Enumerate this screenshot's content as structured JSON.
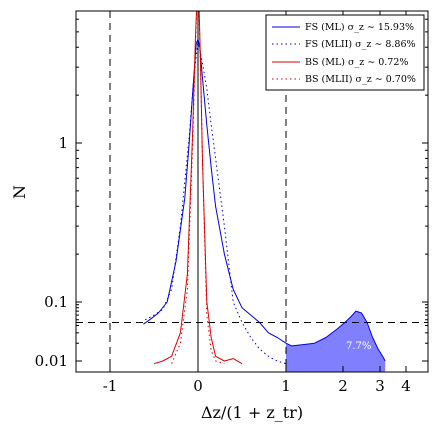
{
  "chart_data": {
    "type": "line",
    "title": "",
    "xlabel": "Δz/(1 + z_tr)",
    "ylabel": "N",
    "yscale": "log",
    "xscale": "symlog (linear between -1 and 1, log-like beyond)",
    "ylim": [
      0.008,
      9.0
    ],
    "xlim": [
      -1.7,
      4.8
    ],
    "x_ticks": [
      {
        "value": -1,
        "label": "-1"
      },
      {
        "value": 0,
        "label": "0"
      },
      {
        "value": 1,
        "label": "1"
      },
      {
        "value": 2,
        "label": "2"
      },
      {
        "value": 3,
        "label": "3"
      },
      {
        "value": 4,
        "label": "4"
      }
    ],
    "y_ticks": [
      {
        "value": 0.01,
        "label": "0.01"
      },
      {
        "value": 0.1,
        "label": "0.1"
      },
      {
        "value": 1,
        "label": "1"
      }
    ],
    "grid": false,
    "legend_position": "top-right",
    "reference_lines": {
      "vertical_dashed": [
        -1,
        1
      ],
      "vertical_solid": [
        0
      ],
      "horizontal_dashed": [
        0.045
      ]
    },
    "fill_annotation": {
      "label": "7.7%",
      "color": "#8080ff",
      "x_from": 1,
      "x_to": 3.2
    },
    "series": [
      {
        "name": "FS (ML) σ_z ∼ 15.93%",
        "color": "#0000dd",
        "style": "solid",
        "x": [
          -0.62,
          -0.55,
          -0.45,
          -0.35,
          -0.25,
          -0.15,
          -0.1,
          -0.05,
          -0.02,
          0.0,
          0.02,
          0.05,
          0.1,
          0.15,
          0.2,
          0.3,
          0.4,
          0.5,
          0.6,
          0.7,
          0.8,
          0.9,
          1.0,
          1.1,
          1.3,
          1.5,
          1.7,
          1.9,
          2.05,
          2.2,
          2.35,
          2.5,
          2.65,
          2.8,
          2.95,
          3.1,
          3.2
        ],
        "y": [
          0.042,
          0.05,
          0.065,
          0.1,
          0.18,
          0.45,
          1.0,
          2.5,
          4.2,
          4.5,
          4.0,
          2.6,
          1.3,
          0.7,
          0.4,
          0.2,
          0.12,
          0.08,
          0.06,
          0.045,
          0.03,
          0.025,
          0.02,
          0.018,
          0.019,
          0.02,
          0.025,
          0.035,
          0.045,
          0.055,
          0.07,
          0.065,
          0.045,
          0.025,
          0.016,
          0.012,
          0.01
        ]
      },
      {
        "name": "FS (MLII) σ_z ∼ 8.86%",
        "color": "#0000dd",
        "style": "dotted",
        "x": [
          -0.6,
          -0.5,
          -0.4,
          -0.3,
          -0.2,
          -0.1,
          -0.05,
          0.0,
          0.05,
          0.1,
          0.15,
          0.2,
          0.3,
          0.4,
          0.5,
          0.6,
          0.7,
          0.8,
          0.9,
          1.0
        ],
        "y": [
          0.05,
          0.06,
          0.075,
          0.12,
          0.3,
          1.1,
          2.5,
          4.4,
          3.2,
          2.2,
          1.3,
          0.8,
          0.3,
          0.1,
          0.045,
          0.025,
          0.016,
          0.012,
          0.01,
          0.009
        ]
      },
      {
        "name": "BS (ML) σ_z ∼ 0.72%",
        "color": "#dd0000",
        "style": "solid",
        "x": [
          -0.5,
          -0.4,
          -0.3,
          -0.2,
          -0.12,
          -0.06,
          -0.03,
          -0.01,
          0.0,
          0.01,
          0.03,
          0.05,
          0.1,
          0.15,
          0.2,
          0.3,
          0.4,
          0.5
        ],
        "y": [
          0.009,
          0.01,
          0.012,
          0.03,
          0.15,
          1.2,
          4.5,
          8.5,
          9.0,
          8.0,
          3.0,
          0.8,
          0.1,
          0.025,
          0.012,
          0.01,
          0.011,
          0.009
        ]
      },
      {
        "name": "BS (MLII) σ_z ∼ 0.70%",
        "color": "#dd0000",
        "style": "dotted",
        "x": [
          -0.3,
          -0.2,
          -0.12,
          -0.06,
          -0.03,
          -0.01,
          0.0,
          0.01,
          0.03,
          0.06,
          0.1,
          0.15,
          0.2,
          0.3
        ],
        "y": [
          0.009,
          0.02,
          0.12,
          1.0,
          4.0,
          8.0,
          8.8,
          7.5,
          2.8,
          0.5,
          0.06,
          0.015,
          0.01,
          0.009
        ]
      }
    ]
  }
}
